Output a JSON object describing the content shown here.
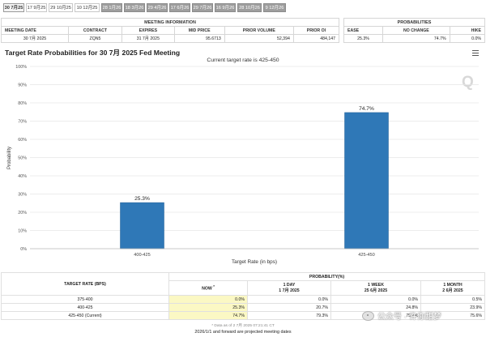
{
  "tabs": [
    {
      "label": "30 7月25",
      "state": "active"
    },
    {
      "label": "17 9月25",
      "state": "normal"
    },
    {
      "label": "29 10月25",
      "state": "normal"
    },
    {
      "label": "10 12月25",
      "state": "normal"
    },
    {
      "label": "28 1月26",
      "state": "grey"
    },
    {
      "label": "18 3月26",
      "state": "grey"
    },
    {
      "label": "29 4月26",
      "state": "grey"
    },
    {
      "label": "17 6月26",
      "state": "grey"
    },
    {
      "label": "29 7月26",
      "state": "grey"
    },
    {
      "label": "16 9月26",
      "state": "grey"
    },
    {
      "label": "28 10月26",
      "state": "grey"
    },
    {
      "label": "9 12月26",
      "state": "grey"
    }
  ],
  "meeting_info": {
    "caption": "MEETING INFORMATION",
    "headers": [
      "MEETING DATE",
      "CONTRACT",
      "EXPIRES",
      "MID PRICE",
      "PRIOR VOLUME",
      "PRIOR OI"
    ],
    "values": [
      "30 7月 2025",
      "ZQN5",
      "31 7月 2025",
      "95.6713",
      "52,394",
      "484,147"
    ]
  },
  "probabilities": {
    "caption": "PROBABILITIES",
    "headers": [
      "EASE",
      "NO CHANGE",
      "HIKE"
    ],
    "values": [
      "25.3%",
      "74.7%",
      "0.0%"
    ]
  },
  "chart_title": "Target Rate Probabilities for 30 7月 2025 Fed Meeting",
  "logo_text": "Q",
  "chart_data": {
    "type": "bar",
    "subtitle": "Current target rate is 425-450",
    "categories": [
      "400-425",
      "425-450"
    ],
    "values": [
      25.3,
      74.7
    ],
    "data_labels": [
      "25.3%",
      "74.7%"
    ],
    "xlabel": "Target Rate (in bps)",
    "ylabel": "Probability",
    "ylim": [
      0,
      100
    ],
    "yticks": [
      0,
      10,
      20,
      30,
      40,
      50,
      60,
      70,
      80,
      90,
      100
    ],
    "ytick_labels": [
      "0%",
      "10%",
      "20%",
      "30%",
      "40%",
      "50%",
      "60%",
      "70%",
      "80%",
      "90%",
      "100%"
    ],
    "grid": true,
    "bar_color": "#2f78b7"
  },
  "prob_table": {
    "rate_header": "TARGET RATE (BPS)",
    "group_header": "PROBABILITY(%)",
    "columns": [
      {
        "label": "NOW",
        "sup": "*",
        "date": ""
      },
      {
        "label": "1 DAY",
        "date": "1 7月 2025"
      },
      {
        "label": "1 WEEK",
        "date": "25 6月 2025"
      },
      {
        "label": "1 MONTH",
        "date": "2 6月 2025"
      }
    ],
    "rows": [
      {
        "rate": "375-400",
        "values": [
          "0.0%",
          "0.0%",
          "0.0%",
          "0.5%"
        ]
      },
      {
        "rate": "400-425",
        "values": [
          "25.3%",
          "20.7%",
          "24.8%",
          "23.9%"
        ]
      },
      {
        "rate": "425-450 (Current)",
        "values": [
          "74.7%",
          "79.3%",
          "75.2%",
          "75.6%"
        ]
      }
    ]
  },
  "footnote": "* Data as of 2 7月 2025 07:21:41 CT",
  "footer": "2026/1/1 and forward are projected meeting dates",
  "watermark": "公众号 · 许你甜梦"
}
